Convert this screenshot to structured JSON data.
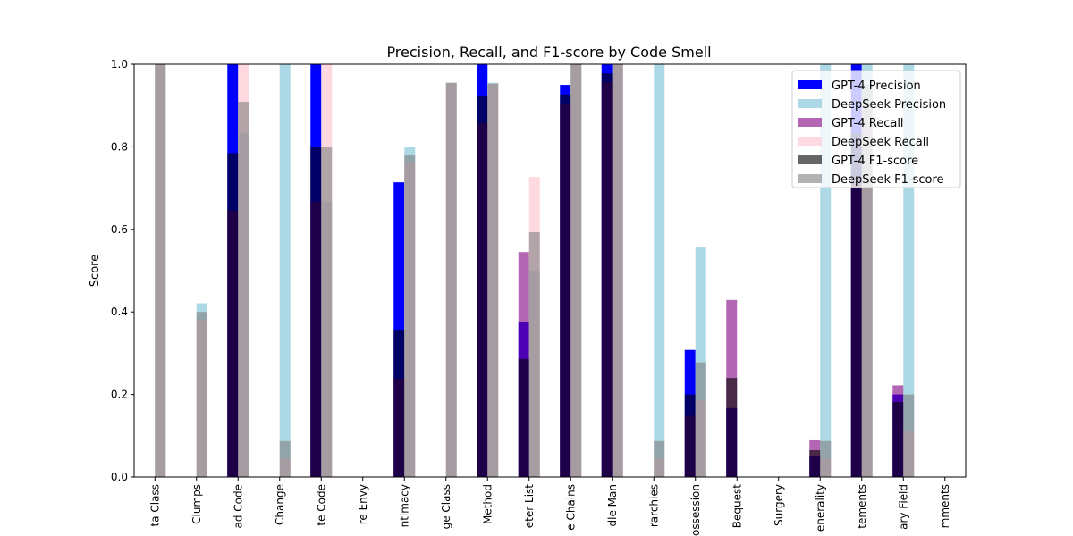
{
  "chart_data": {
    "type": "bar",
    "title": "Precision, Recall, and F1-score by Code Smell",
    "xlabel": "",
    "ylabel": "Score",
    "ylim": [
      0,
      1.0
    ],
    "yticks": [
      "0.0",
      "0.2",
      "0.4",
      "0.6",
      "0.8",
      "1.0"
    ],
    "legend_position": "top-right",
    "categories": [
      "ta Class",
      "Clumps",
      "ad Code",
      "Change",
      "te Code",
      "re Envy",
      "ntimacy",
      "ge Class",
      "Method",
      "eter List",
      "e Chains",
      "dle Man",
      "rarchies",
      "ossession",
      "Bequest",
      "Surgery",
      "enerality",
      "tements",
      "ary Field",
      "mments"
    ],
    "series": [
      {
        "name": "GPT-4 Precision",
        "color": "#0000ff",
        "opacity": 1.0,
        "group": "gpt4",
        "values": [
          0,
          0,
          1.0,
          0,
          1.0,
          0,
          0.714,
          0,
          1.0,
          0.375,
          0.95,
          1.0,
          0,
          0.308,
          0.167,
          0,
          0.05,
          1.0,
          0.2,
          0
        ]
      },
      {
        "name": "DeepSeek Precision",
        "color": "#add8e6",
        "opacity": 1.0,
        "group": "deepseek",
        "values": [
          1.0,
          0.421,
          0.833,
          1.0,
          0.667,
          0,
          0.8,
          0.955,
          0.955,
          0.5,
          1.0,
          1.0,
          1.0,
          0.556,
          0,
          0,
          1.0,
          1.0,
          1.0,
          0
        ]
      },
      {
        "name": "GPT-4 Recall",
        "color": "#800080",
        "opacity": 0.6,
        "group": "gpt4",
        "values": [
          0,
          0,
          0.645,
          0,
          0.667,
          0,
          0.238,
          0,
          0.857,
          0.545,
          0.905,
          0.957,
          0,
          0.148,
          0.429,
          0,
          0.091,
          0.714,
          0.222,
          0
        ]
      },
      {
        "name": "DeepSeek Recall",
        "color": "#ffc0cb",
        "opacity": 0.6,
        "group": "deepseek",
        "values": [
          1.0,
          0.381,
          1.0,
          0.045,
          1.0,
          0,
          0.762,
          0.955,
          0.952,
          0.727,
          1.0,
          1.0,
          0.045,
          0.185,
          0,
          0,
          0.045,
          0.909,
          0.111,
          0
        ]
      },
      {
        "name": "GPT-4 F1-score",
        "color": "#000000",
        "opacity": 0.6,
        "group": "gpt4",
        "values": [
          0,
          0,
          0.785,
          0,
          0.8,
          0,
          0.357,
          0,
          0.923,
          0.286,
          0.927,
          0.978,
          0,
          0.2,
          0.24,
          0,
          0.065,
          0.833,
          0.182,
          0
        ]
      },
      {
        "name": "DeepSeek F1-score",
        "color": "#808080",
        "opacity": 0.6,
        "group": "deepseek",
        "values": [
          1.0,
          0.4,
          0.909,
          0.087,
          0.8,
          0,
          0.78,
          0.955,
          0.953,
          0.593,
          1.0,
          1.0,
          0.087,
          0.278,
          0,
          0,
          0.087,
          0.952,
          0.2,
          0
        ]
      }
    ]
  }
}
